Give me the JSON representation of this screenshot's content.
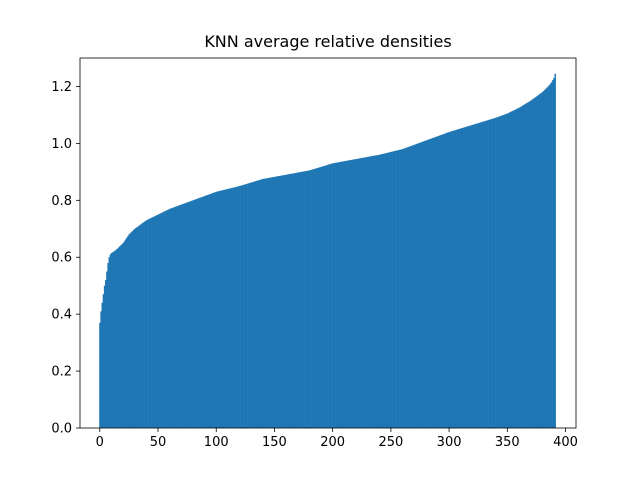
{
  "chart_data": {
    "type": "bar",
    "title": "KNN average relative densities",
    "xlabel": "",
    "ylabel": "",
    "xlim": [
      -17,
      409
    ],
    "ylim": [
      0,
      1.3
    ],
    "xticks": [
      0,
      50,
      100,
      150,
      200,
      250,
      300,
      350,
      400
    ],
    "xtick_labels": [
      "0",
      "50",
      "100",
      "150",
      "200",
      "250",
      "300",
      "350",
      "400"
    ],
    "yticks": [
      0.0,
      0.2,
      0.4,
      0.6,
      0.8,
      1.0,
      1.2
    ],
    "ytick_labels": [
      "0.0",
      "0.2",
      "0.4",
      "0.6",
      "0.8",
      "1.0",
      "1.2"
    ],
    "grid": false,
    "color": "#1f77b4",
    "n_bars": 392,
    "sorted_value_profile": {
      "index": [
        0,
        1,
        2,
        3,
        4,
        5,
        6,
        7,
        8,
        9,
        10,
        12,
        15,
        20,
        25,
        30,
        35,
        40,
        50,
        60,
        70,
        80,
        90,
        100,
        120,
        140,
        160,
        180,
        200,
        220,
        240,
        260,
        280,
        300,
        320,
        340,
        350,
        360,
        370,
        375,
        380,
        385,
        388,
        390,
        391
      ],
      "values": [
        0.37,
        0.41,
        0.44,
        0.47,
        0.5,
        0.52,
        0.55,
        0.58,
        0.6,
        0.61,
        0.615,
        0.62,
        0.63,
        0.65,
        0.68,
        0.7,
        0.715,
        0.73,
        0.75,
        0.77,
        0.785,
        0.8,
        0.815,
        0.83,
        0.85,
        0.875,
        0.89,
        0.905,
        0.93,
        0.945,
        0.96,
        0.98,
        1.01,
        1.04,
        1.065,
        1.09,
        1.105,
        1.125,
        1.15,
        1.165,
        1.18,
        1.2,
        1.215,
        1.23,
        1.245
      ]
    }
  }
}
